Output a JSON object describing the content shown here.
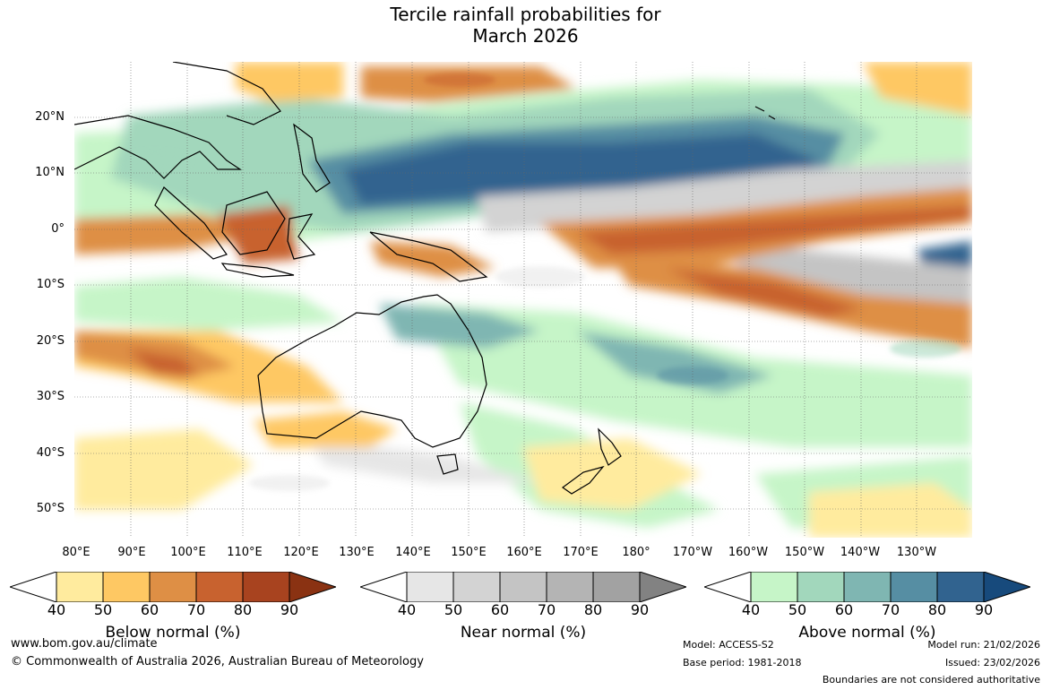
{
  "title": {
    "line1": "Tercile rainfall probabilities for",
    "line2": "March 2026"
  },
  "axes": {
    "lat_labels": [
      "20°N",
      "10°N",
      "0°",
      "10°S",
      "20°S",
      "30°S",
      "40°S",
      "50°S"
    ],
    "lon_labels": [
      "80°E",
      "90°E",
      "100°E",
      "110°E",
      "120°E",
      "130°E",
      "140°E",
      "150°E",
      "160°E",
      "170°E",
      "180°",
      "170°W",
      "160°W",
      "150°W",
      "140°W",
      "130°W"
    ],
    "lat_range": [
      -55,
      30
    ],
    "lon_range": [
      80,
      240
    ]
  },
  "legends": [
    {
      "label": "Below normal (%)",
      "ticks": [
        "40",
        "50",
        "60",
        "70",
        "80",
        "90"
      ],
      "colors": [
        "#ffffff",
        "#ffeb9e",
        "#fec863",
        "#de8f45",
        "#c8622f",
        "#a8431f",
        "#8a3212"
      ]
    },
    {
      "label": "Near normal (%)",
      "ticks": [
        "40",
        "50",
        "60",
        "70",
        "80",
        "90"
      ],
      "colors": [
        "#ffffff",
        "#e6e6e6",
        "#d3d3d3",
        "#c4c4c4",
        "#b4b4b4",
        "#a2a2a2",
        "#828282"
      ]
    },
    {
      "label": "Above normal (%)",
      "ticks": [
        "40",
        "50",
        "60",
        "70",
        "80",
        "90"
      ],
      "colors": [
        "#ffffff",
        "#c6f5c8",
        "#a2d7bc",
        "#7fb6b2",
        "#568ea3",
        "#31638f",
        "#174a7c"
      ]
    }
  ],
  "footer": {
    "url": "www.bom.gov.au/climate",
    "copyright": "© Commonwealth of Australia 2026, Australian Bureau of Meteorology",
    "model": "Model: ACCESS-S2",
    "base_period": "Base period: 1981-2018",
    "model_run": "Model run: 21/02/2026",
    "issued": "Issued: 23/02/2026",
    "disclaimer": "Boundaries are not considered authoritative"
  }
}
